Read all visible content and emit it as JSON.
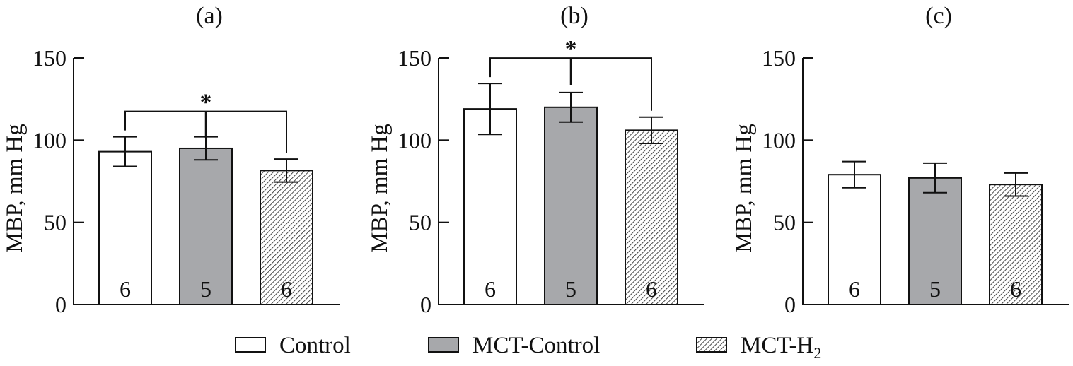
{
  "colors": {
    "control": "#ffffff",
    "mct_control": "#a7a8ab",
    "mct_h2": "hatched",
    "line": "#111111"
  },
  "chart_data": [
    {
      "type": "bar",
      "title": "(a)",
      "ylabel": "MBP, mm Hg",
      "ylim": [
        0,
        150
      ],
      "yticks": [
        0,
        50,
        100,
        150
      ],
      "categories": [
        "Control",
        "MCT-Control",
        "MCT-H2"
      ],
      "values": [
        93,
        95,
        81.5
      ],
      "errors": [
        9,
        7,
        7
      ],
      "n_labels": [
        "6",
        "5",
        "6"
      ],
      "significance": {
        "from": 0,
        "to": 2,
        "label": "*"
      }
    },
    {
      "type": "bar",
      "title": "(b)",
      "ylabel": "MBP, mm Hg",
      "ylim": [
        0,
        150
      ],
      "yticks": [
        0,
        50,
        100,
        150
      ],
      "categories": [
        "Control",
        "MCT-Control",
        "MCT-H2"
      ],
      "values": [
        119,
        120,
        106
      ],
      "errors": [
        15.5,
        9,
        8
      ],
      "n_labels": [
        "6",
        "5",
        "6"
      ],
      "significance": {
        "from": 0,
        "to": 2,
        "label": "*"
      }
    },
    {
      "type": "bar",
      "title": "(c)",
      "ylabel": "MBP, mm Hg",
      "ylim": [
        0,
        150
      ],
      "yticks": [
        0,
        50,
        100,
        150
      ],
      "categories": [
        "Control",
        "MCT-Control",
        "MCT-H2"
      ],
      "values": [
        79,
        77,
        73
      ],
      "errors": [
        8,
        9,
        7
      ],
      "n_labels": [
        "6",
        "5",
        "6"
      ]
    }
  ],
  "legend": {
    "items": [
      {
        "label": "Control",
        "fill": "white"
      },
      {
        "label": "MCT-Control",
        "fill": "gray"
      },
      {
        "label": "MCT-H",
        "subscript": "2",
        "fill": "hatched"
      }
    ]
  }
}
